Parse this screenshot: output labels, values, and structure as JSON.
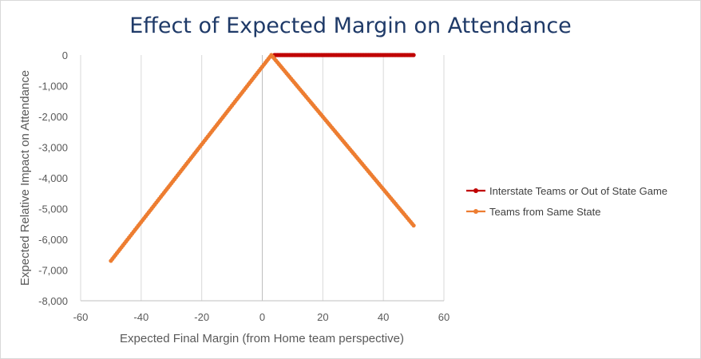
{
  "chart_data": {
    "type": "scatter",
    "title": "Effect of Expected Margin on Attendance",
    "xlabel": "Expected Final Margin (from Home team perspective)",
    "ylabel": "Expected Relative Impact on Attendance",
    "xlim": [
      -60,
      60
    ],
    "ylim": [
      -8000,
      0
    ],
    "x_ticks": [
      -60,
      -40,
      -20,
      0,
      20,
      40,
      60
    ],
    "y_ticks": [
      0,
      -1000,
      -2000,
      -3000,
      -4000,
      -5000,
      -6000,
      -7000,
      -8000
    ],
    "x_tick_labels": [
      "-60",
      "-40",
      "-20",
      "0",
      "20",
      "40",
      "60"
    ],
    "y_tick_labels": [
      "0",
      "-1,000",
      "-2,000",
      "-3,000",
      "-4,000",
      "-5,000",
      "-6,000",
      "-7,000",
      "-8,000"
    ],
    "grid": "vertical",
    "legend_position": "right",
    "series": [
      {
        "name": "Interstate Teams or Out of State Game",
        "color": "#c00000",
        "x_range": [
          4,
          50
        ],
        "x_step": 0.5,
        "points": [
          [
            4,
            0
          ],
          [
            50,
            0
          ]
        ]
      },
      {
        "name": "Teams from Same State",
        "color": "#ed7d31",
        "x_range": [
          -50,
          50
        ],
        "x_step": 0.5,
        "points": [
          [
            -50,
            -6700
          ],
          [
            3,
            0
          ],
          [
            50,
            -5550
          ]
        ]
      }
    ]
  }
}
